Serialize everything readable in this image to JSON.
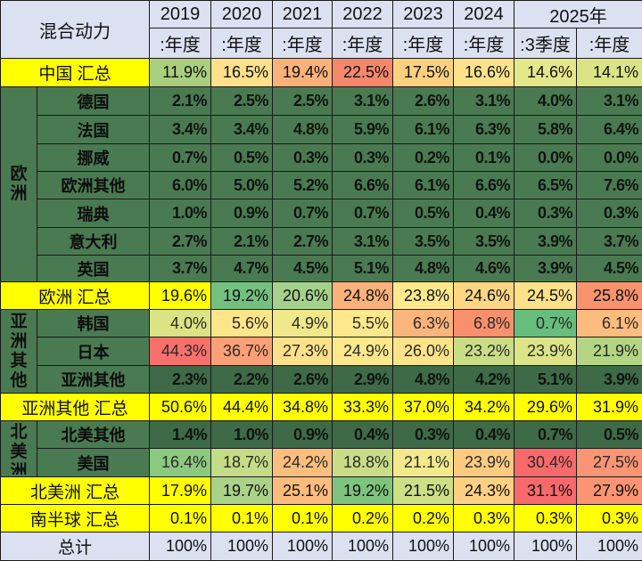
{
  "table": {
    "title": "混合动力",
    "years": [
      "2019",
      "2020",
      "2021",
      "2022",
      "2023",
      "2024",
      "2025年"
    ],
    "subheaders": [
      ":年度",
      ":年度",
      ":年度",
      ":年度",
      ":年度",
      ":年度",
      ":3季度",
      ":年度"
    ],
    "regions": {
      "europe": "欧洲",
      "asia_other": "亚洲其他",
      "north_america": "北美洲"
    },
    "rows": {
      "china_total": {
        "label": "中国 汇总",
        "values": [
          "11.9%",
          "16.5%",
          "19.4%",
          "22.5%",
          "17.5%",
          "16.6%",
          "14.6%",
          "14.1%"
        ]
      },
      "germany": {
        "label": "德国",
        "values": [
          "2.1%",
          "2.5%",
          "2.5%",
          "3.1%",
          "2.6%",
          "3.1%",
          "4.0%",
          "3.1%"
        ]
      },
      "france": {
        "label": "法国",
        "values": [
          "3.4%",
          "3.4%",
          "4.8%",
          "5.9%",
          "6.1%",
          "6.3%",
          "5.8%",
          "6.4%"
        ]
      },
      "norway": {
        "label": "挪威",
        "values": [
          "0.7%",
          "0.5%",
          "0.3%",
          "0.3%",
          "0.2%",
          "0.1%",
          "0.0%",
          "0.0%"
        ]
      },
      "europe_other": {
        "label": "欧洲其他",
        "values": [
          "6.0%",
          "5.0%",
          "5.2%",
          "6.6%",
          "6.1%",
          "6.6%",
          "6.5%",
          "7.6%"
        ]
      },
      "sweden": {
        "label": "瑞典",
        "values": [
          "1.0%",
          "0.9%",
          "0.7%",
          "0.7%",
          "0.5%",
          "0.4%",
          "0.3%",
          "0.3%"
        ]
      },
      "italy": {
        "label": "意大利",
        "values": [
          "2.7%",
          "2.1%",
          "2.7%",
          "3.1%",
          "3.5%",
          "3.5%",
          "3.9%",
          "3.7%"
        ]
      },
      "uk": {
        "label": "英国",
        "values": [
          "3.7%",
          "4.7%",
          "4.5%",
          "5.1%",
          "4.8%",
          "4.6%",
          "3.9%",
          "4.5%"
        ]
      },
      "europe_total": {
        "label": "欧洲 汇总",
        "values": [
          "19.6%",
          "19.2%",
          "20.6%",
          "24.8%",
          "23.8%",
          "24.6%",
          "24.5%",
          "25.8%"
        ]
      },
      "korea": {
        "label": "韩国",
        "values": [
          "4.0%",
          "5.6%",
          "4.9%",
          "5.5%",
          "6.3%",
          "6.8%",
          "0.7%",
          "6.1%"
        ]
      },
      "japan": {
        "label": "日本",
        "values": [
          "44.3%",
          "36.7%",
          "27.3%",
          "24.9%",
          "26.0%",
          "23.2%",
          "23.9%",
          "21.9%"
        ]
      },
      "asia_other": {
        "label": "亚洲其他",
        "values": [
          "2.3%",
          "2.2%",
          "2.6%",
          "2.9%",
          "4.8%",
          "4.2%",
          "5.1%",
          "3.9%"
        ]
      },
      "asia_total": {
        "label": "亚洲其他 汇总",
        "values": [
          "50.6%",
          "44.4%",
          "34.8%",
          "33.3%",
          "37.0%",
          "34.2%",
          "29.6%",
          "31.9%"
        ]
      },
      "na_other": {
        "label": "北美其他",
        "values": [
          "1.4%",
          "1.0%",
          "0.9%",
          "0.4%",
          "0.3%",
          "0.4%",
          "0.7%",
          "0.5%"
        ]
      },
      "usa": {
        "label": "美国",
        "values": [
          "16.4%",
          "18.7%",
          "24.2%",
          "18.8%",
          "21.1%",
          "23.9%",
          "30.4%",
          "27.5%"
        ]
      },
      "na_total": {
        "label": "北美洲 汇总",
        "values": [
          "17.9%",
          "19.7%",
          "25.1%",
          "19.2%",
          "21.5%",
          "24.3%",
          "31.1%",
          "27.9%"
        ]
      },
      "south_total": {
        "label": "南半球 汇总",
        "values": [
          "0.1%",
          "0.1%",
          "0.1%",
          "0.2%",
          "0.2%",
          "0.3%",
          "0.3%",
          "0.3%"
        ]
      },
      "grand_total": {
        "label": "总计",
        "values": [
          "100%",
          "100%",
          "100%",
          "100%",
          "100%",
          "100%",
          "100%",
          "100%"
        ]
      }
    },
    "heat_colors": {
      "china_total": [
        "#a9cf7e",
        "#fde08a",
        "#fbb27a",
        "#f5876b",
        "#fdd07f",
        "#fde28a",
        "#e5e88a",
        "#dbe485"
      ],
      "europe_total": [
        "#ffff00",
        "#74c080",
        "#a5d28a",
        "#fbb27a",
        "#fde88c",
        "#fdd684",
        "#fde08a",
        "#f8936e"
      ],
      "korea": [
        "#dbe385",
        "#fde58a",
        "#f1e88c",
        "#fde88c",
        "#fbb47b",
        "#f8906e",
        "#67bd7c",
        "#fcbc7d"
      ],
      "japan": [
        "#f7706b",
        "#fba076",
        "#fde08a",
        "#fde88c",
        "#fde38a",
        "#c9dd86",
        "#dde488",
        "#b4d583"
      ],
      "usa": [
        "#8bc97f",
        "#c4dc85",
        "#fcbe7d",
        "#c8dd86",
        "#f3e98c",
        "#fdcb80",
        "#f8696b",
        "#fa9473"
      ],
      "na_total": [
        "#ffff00",
        "#abd289",
        "#fcbc7d",
        "#7fc47e",
        "#cde086",
        "#fdd083",
        "#f8696b",
        "#fa9473"
      ]
    },
    "colors": {
      "header_bg": "#dbe1f1",
      "region_green": "#4a7a52",
      "subtotal_yellow": "#ffff00",
      "grid_line": "#1a1a1a"
    }
  },
  "chart_data": {
    "type": "table",
    "title": "混合动力",
    "columns": [
      "2019:年度",
      "2020:年度",
      "2021:年度",
      "2022:年度",
      "2023:年度",
      "2024:年度",
      "2025年:3季度",
      "2025年:年度"
    ],
    "rows": [
      {
        "group": "",
        "name": "中国 汇总",
        "values": [
          11.9,
          16.5,
          19.4,
          22.5,
          17.5,
          16.6,
          14.6,
          14.1
        ]
      },
      {
        "group": "欧洲",
        "name": "德国",
        "values": [
          2.1,
          2.5,
          2.5,
          3.1,
          2.6,
          3.1,
          4.0,
          3.1
        ]
      },
      {
        "group": "欧洲",
        "name": "法国",
        "values": [
          3.4,
          3.4,
          4.8,
          5.9,
          6.1,
          6.3,
          5.8,
          6.4
        ]
      },
      {
        "group": "欧洲",
        "name": "挪威",
        "values": [
          0.7,
          0.5,
          0.3,
          0.3,
          0.2,
          0.1,
          0.0,
          0.0
        ]
      },
      {
        "group": "欧洲",
        "name": "欧洲其他",
        "values": [
          6.0,
          5.0,
          5.2,
          6.6,
          6.1,
          6.6,
          6.5,
          7.6
        ]
      },
      {
        "group": "欧洲",
        "name": "瑞典",
        "values": [
          1.0,
          0.9,
          0.7,
          0.7,
          0.5,
          0.4,
          0.3,
          0.3
        ]
      },
      {
        "group": "欧洲",
        "name": "意大利",
        "values": [
          2.7,
          2.1,
          2.7,
          3.1,
          3.5,
          3.5,
          3.9,
          3.7
        ]
      },
      {
        "group": "欧洲",
        "name": "英国",
        "values": [
          3.7,
          4.7,
          4.5,
          5.1,
          4.8,
          4.6,
          3.9,
          4.5
        ]
      },
      {
        "group": "",
        "name": "欧洲 汇总",
        "values": [
          19.6,
          19.2,
          20.6,
          24.8,
          23.8,
          24.6,
          24.5,
          25.8
        ]
      },
      {
        "group": "亚洲其他",
        "name": "韩国",
        "values": [
          4.0,
          5.6,
          4.9,
          5.5,
          6.3,
          6.8,
          0.7,
          6.1
        ]
      },
      {
        "group": "亚洲其他",
        "name": "日本",
        "values": [
          44.3,
          36.7,
          27.3,
          24.9,
          26.0,
          23.2,
          23.9,
          21.9
        ]
      },
      {
        "group": "亚洲其他",
        "name": "亚洲其他",
        "values": [
          2.3,
          2.2,
          2.6,
          2.9,
          4.8,
          4.2,
          5.1,
          3.9
        ]
      },
      {
        "group": "",
        "name": "亚洲其他 汇总",
        "values": [
          50.6,
          44.4,
          34.8,
          33.3,
          37.0,
          34.2,
          29.6,
          31.9
        ]
      },
      {
        "group": "北美洲",
        "name": "北美其他",
        "values": [
          1.4,
          1.0,
          0.9,
          0.4,
          0.3,
          0.4,
          0.7,
          0.5
        ]
      },
      {
        "group": "北美洲",
        "name": "美国",
        "values": [
          16.4,
          18.7,
          24.2,
          18.8,
          21.1,
          23.9,
          30.4,
          27.5
        ]
      },
      {
        "group": "",
        "name": "北美洲 汇总",
        "values": [
          17.9,
          19.7,
          25.1,
          19.2,
          21.5,
          24.3,
          31.1,
          27.9
        ]
      },
      {
        "group": "",
        "name": "南半球 汇总",
        "values": [
          0.1,
          0.1,
          0.1,
          0.2,
          0.2,
          0.3,
          0.3,
          0.3
        ]
      },
      {
        "group": "",
        "name": "总计",
        "values": [
          100,
          100,
          100,
          100,
          100,
          100,
          100,
          100
        ]
      }
    ],
    "unit": "%"
  }
}
